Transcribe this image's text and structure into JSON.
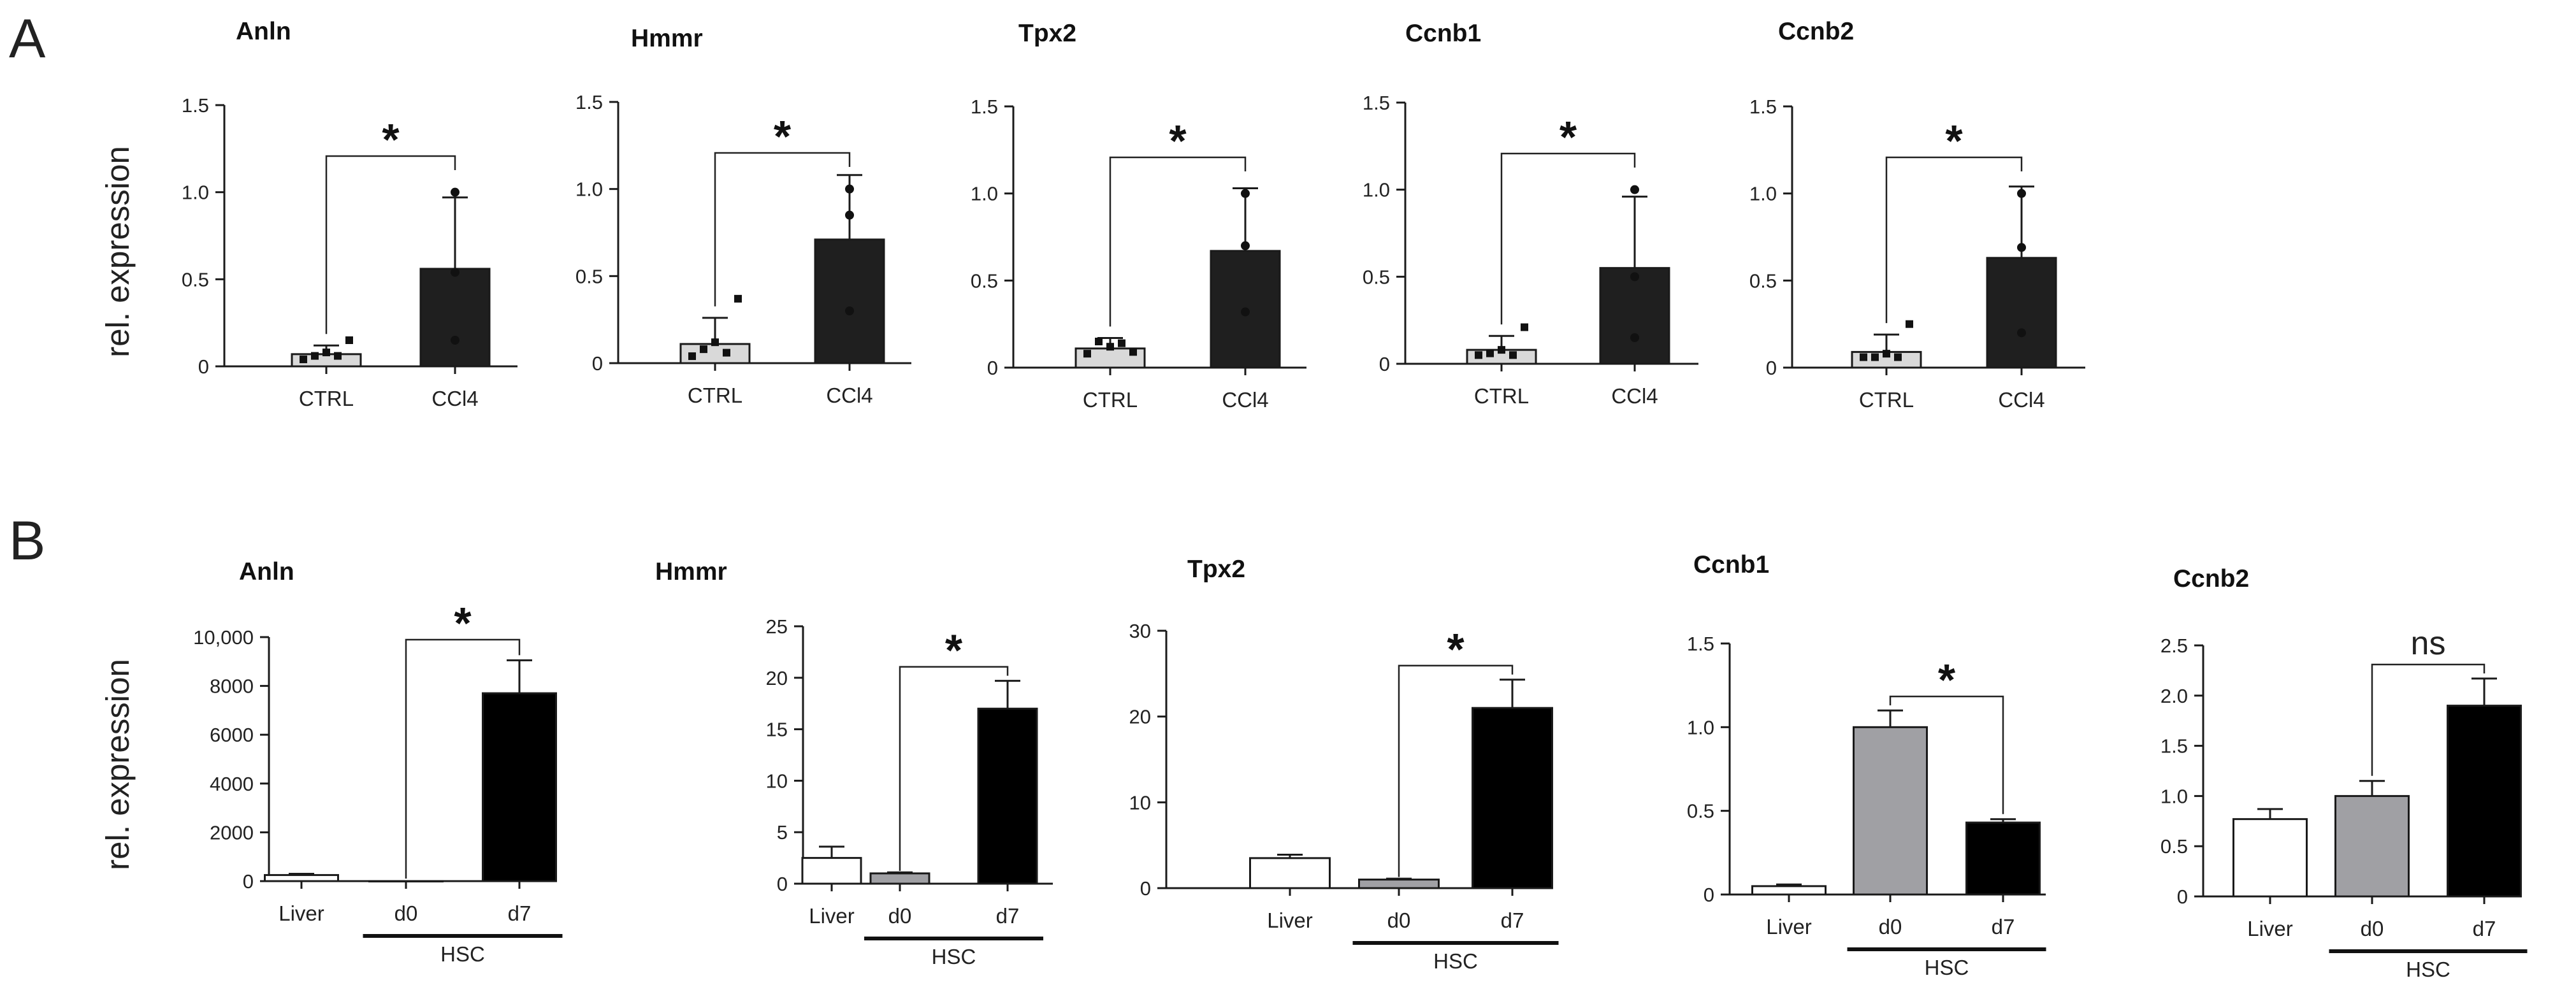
{
  "panels": [
    "A",
    "B"
  ],
  "ylabel": "rel. expression",
  "chart_data": [
    {
      "panel": "A",
      "type": "bar",
      "title": "Anln",
      "categories": [
        "CTRL",
        "CCl4"
      ],
      "values": [
        0.07,
        0.56
      ],
      "errors": [
        0.05,
        0.41
      ],
      "points": [
        [
          0.04,
          0.06,
          0.08,
          0.06,
          0.15
        ],
        [
          1.0,
          0.54,
          0.15
        ]
      ],
      "ylim": [
        0,
        1.5
      ],
      "yticks": [
        "0",
        "0.5",
        "1.0",
        "1.5"
      ],
      "tickvals": [
        0,
        0.5,
        1.0,
        1.5
      ],
      "bar_colors": [
        "#d9d9d9",
        "#1f1f1f"
      ],
      "comparison": {
        "from": 0,
        "to": 1,
        "label": "*"
      },
      "group": null
    },
    {
      "panel": "A",
      "type": "bar",
      "title": "Hmmr",
      "categories": [
        "CTRL",
        "CCl4"
      ],
      "values": [
        0.11,
        0.71
      ],
      "errors": [
        0.15,
        0.37
      ],
      "points": [
        [
          0.04,
          0.08,
          0.12,
          0.06,
          0.37
        ],
        [
          1.0,
          0.85,
          0.3
        ]
      ],
      "ylim": [
        0,
        1.5
      ],
      "yticks": [
        "0",
        "0.5",
        "1.0",
        "1.5"
      ],
      "tickvals": [
        0,
        0.5,
        1.0,
        1.5
      ],
      "bar_colors": [
        "#d9d9d9",
        "#1f1f1f"
      ],
      "comparison": {
        "from": 0,
        "to": 1,
        "label": "*"
      },
      "group": null
    },
    {
      "panel": "A",
      "type": "bar",
      "title": "Tpx2",
      "categories": [
        "CTRL",
        "CCl4"
      ],
      "values": [
        0.11,
        0.67
      ],
      "errors": [
        0.06,
        0.36
      ],
      "points": [
        [
          0.08,
          0.15,
          0.12,
          0.14,
          0.09
        ],
        [
          1.0,
          0.7,
          0.32
        ]
      ],
      "ylim": [
        0,
        1.5
      ],
      "yticks": [
        "0",
        "0.5",
        "1.0",
        "1.5"
      ],
      "tickvals": [
        0,
        0.5,
        1.0,
        1.5
      ],
      "bar_colors": [
        "#d9d9d9",
        "#1f1f1f"
      ],
      "comparison": {
        "from": 0,
        "to": 1,
        "label": "*"
      },
      "group": null
    },
    {
      "panel": "A",
      "type": "bar",
      "title": "Ccnb1",
      "categories": [
        "CTRL",
        "CCl4"
      ],
      "values": [
        0.08,
        0.55
      ],
      "errors": [
        0.08,
        0.41
      ],
      "points": [
        [
          0.05,
          0.06,
          0.08,
          0.05,
          0.21
        ],
        [
          1.0,
          0.5,
          0.15
        ]
      ],
      "ylim": [
        0,
        1.5
      ],
      "yticks": [
        "0",
        "0.5",
        "1.0",
        "1.5"
      ],
      "tickvals": [
        0,
        0.5,
        1.0,
        1.5
      ],
      "bar_colors": [
        "#d9d9d9",
        "#1f1f1f"
      ],
      "comparison": {
        "from": 0,
        "to": 1,
        "label": "*"
      },
      "group": null
    },
    {
      "panel": "A",
      "type": "bar",
      "title": "Ccnb2",
      "categories": [
        "CTRL",
        "CCl4"
      ],
      "values": [
        0.09,
        0.63
      ],
      "errors": [
        0.1,
        0.41
      ],
      "points": [
        [
          0.06,
          0.06,
          0.08,
          0.06,
          0.25
        ],
        [
          1.0,
          0.69,
          0.2
        ]
      ],
      "ylim": [
        0,
        1.5
      ],
      "yticks": [
        "0",
        "0.5",
        "1.0",
        "1.5"
      ],
      "tickvals": [
        0,
        0.5,
        1.0,
        1.5
      ],
      "bar_colors": [
        "#d9d9d9",
        "#1f1f1f"
      ],
      "comparison": {
        "from": 0,
        "to": 1,
        "label": "*"
      },
      "group": null
    },
    {
      "panel": "B",
      "type": "bar",
      "title": "Anln",
      "categories": [
        "Liver",
        "d0",
        "d7"
      ],
      "values": [
        250,
        1,
        7700
      ],
      "errors": [
        50,
        0,
        1350
      ],
      "points": null,
      "ylim": [
        0,
        10000
      ],
      "yticks": [
        "0",
        "2000",
        "4000",
        "6000",
        "8000",
        "10,000"
      ],
      "tickvals": [
        0,
        2000,
        4000,
        6000,
        8000,
        10000
      ],
      "bar_colors": [
        "#ffffff",
        "#a0a0a4",
        "#000000"
      ],
      "comparison": {
        "from": 1,
        "to": 2,
        "label": "*"
      },
      "group": "HSC"
    },
    {
      "panel": "B",
      "type": "bar",
      "title": "Hmmr",
      "categories": [
        "Liver",
        "d0",
        "d7"
      ],
      "values": [
        2.5,
        1.0,
        17.0
      ],
      "errors": [
        1.1,
        0.1,
        2.7
      ],
      "points": null,
      "ylim": [
        0,
        25
      ],
      "yticks": [
        "0",
        "5",
        "10",
        "15",
        "20",
        "25"
      ],
      "tickvals": [
        0,
        5,
        10,
        15,
        20,
        25
      ],
      "bar_colors": [
        "#ffffff",
        "#a0a0a4",
        "#000000"
      ],
      "comparison": {
        "from": 1,
        "to": 2,
        "label": "*"
      },
      "group": "HSC"
    },
    {
      "panel": "B",
      "type": "bar",
      "title": "Tpx2",
      "categories": [
        "Liver",
        "d0",
        "d7"
      ],
      "values": [
        3.5,
        1.0,
        21.0
      ],
      "errors": [
        0.4,
        0.1,
        3.3
      ],
      "points": null,
      "ylim": [
        0,
        30
      ],
      "yticks": [
        "0",
        "10",
        "20",
        "30"
      ],
      "tickvals": [
        0,
        10,
        20,
        30
      ],
      "bar_colors": [
        "#ffffff",
        "#a0a0a4",
        "#000000"
      ],
      "comparison": {
        "from": 1,
        "to": 2,
        "label": "*"
      },
      "group": "HSC"
    },
    {
      "panel": "B",
      "type": "bar",
      "title": "Ccnb1",
      "categories": [
        "Liver",
        "d0",
        "d7"
      ],
      "values": [
        0.05,
        1.0,
        0.43
      ],
      "errors": [
        0.01,
        0.1,
        0.02
      ],
      "points": null,
      "ylim": [
        0,
        1.5
      ],
      "yticks": [
        "0",
        "0.5",
        "1.0",
        "1.5"
      ],
      "tickvals": [
        0,
        0.5,
        1.0,
        1.5
      ],
      "bar_colors": [
        "#ffffff",
        "#a0a0a4",
        "#000000"
      ],
      "comparison": {
        "from": 1,
        "to": 2,
        "label": "*"
      },
      "group": "HSC"
    },
    {
      "panel": "B",
      "type": "bar",
      "title": "Ccnb2",
      "categories": [
        "Liver",
        "d0",
        "d7"
      ],
      "values": [
        0.77,
        1.0,
        1.9
      ],
      "errors": [
        0.1,
        0.15,
        0.27
      ],
      "points": null,
      "ylim": [
        0,
        2.5
      ],
      "yticks": [
        "0",
        "0.5",
        "1.0",
        "1.5",
        "2.0",
        "2.5"
      ],
      "tickvals": [
        0,
        0.5,
        1.0,
        1.5,
        2.0,
        2.5
      ],
      "bar_colors": [
        "#ffffff",
        "#a0a0a4",
        "#000000"
      ],
      "comparison": {
        "from": 1,
        "to": 2,
        "label": "ns"
      },
      "group": "HSC"
    }
  ]
}
